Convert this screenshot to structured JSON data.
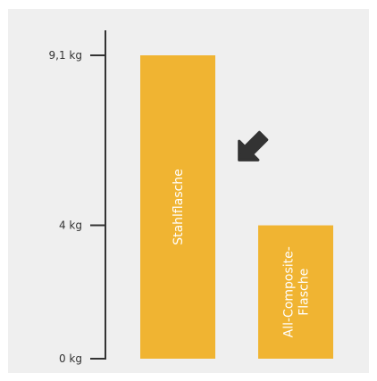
{
  "chart_data": {
    "type": "bar",
    "categories": [
      "Stahlflasche",
      "All-Composite-Flasche"
    ],
    "category_lines": [
      [
        "Stahlflasche"
      ],
      [
        "All-Composite-",
        "Flasche"
      ]
    ],
    "values": [
      9.1,
      4
    ],
    "unit": "kg",
    "y_ticks": [
      {
        "value": 0,
        "label": "0 kg"
      },
      {
        "value": 4,
        "label": "4 kg"
      },
      {
        "value": 9.1,
        "label": "9,1 kg"
      }
    ],
    "ylim": [
      0,
      9.1
    ],
    "grid": false,
    "legend": "none",
    "bar_color": "#f0b432",
    "axis_color": "#333333",
    "arrow_color": "#333333",
    "background_color": "#efefef"
  }
}
